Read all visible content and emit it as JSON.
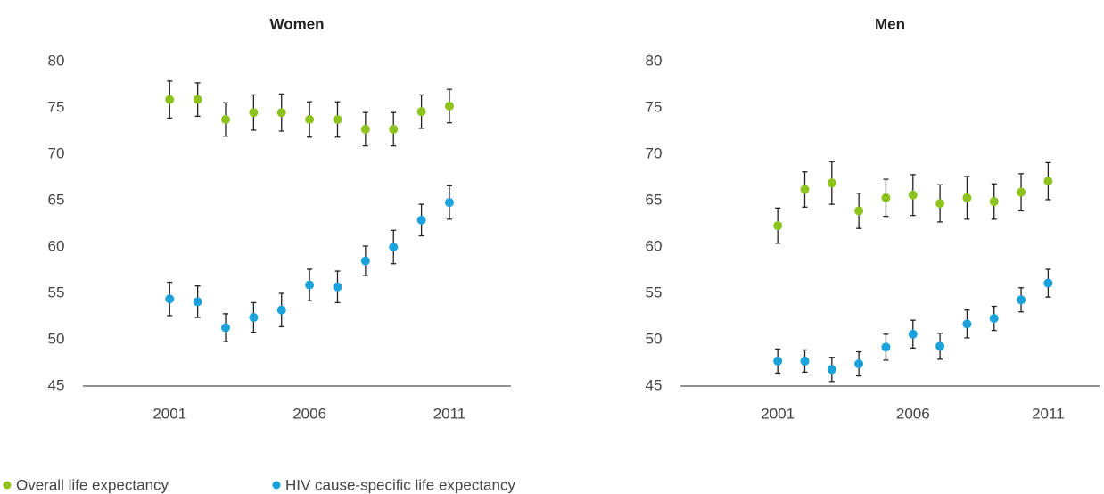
{
  "chart_data": [
    {
      "type": "scatter",
      "title": "Women",
      "x": [
        2001,
        2002,
        2003,
        2004,
        2005,
        2006,
        2007,
        2008,
        2009,
        2010,
        2011
      ],
      "xlim": [
        1997.9,
        2013.2
      ],
      "xticks": [
        2001,
        2006,
        2011
      ],
      "ylim": [
        45,
        80
      ],
      "yticks": [
        45,
        50,
        55,
        60,
        65,
        70,
        75,
        80
      ],
      "series": [
        {
          "color": "#8dc21f",
          "values": [
            75.9,
            75.9,
            73.75,
            74.5,
            74.5,
            73.75,
            73.75,
            72.7,
            72.7,
            74.6,
            75.2
          ],
          "errors": [
            2.0,
            1.8,
            1.8,
            1.9,
            2.0,
            1.9,
            1.9,
            1.8,
            1.8,
            1.8,
            1.8
          ]
        },
        {
          "color": "#1ba1dc",
          "values": [
            54.4,
            54.1,
            51.3,
            52.4,
            53.2,
            55.9,
            55.7,
            58.5,
            60.0,
            62.9,
            64.8
          ],
          "errors": [
            1.8,
            1.7,
            1.5,
            1.6,
            1.8,
            1.7,
            1.7,
            1.6,
            1.8,
            1.7,
            1.8
          ]
        }
      ]
    },
    {
      "type": "scatter",
      "title": "Men",
      "x": [
        2001,
        2002,
        2003,
        2004,
        2005,
        2006,
        2007,
        2008,
        2009,
        2010,
        2011
      ],
      "xlim": [
        1997.4,
        2012.9
      ],
      "xticks": [
        2001,
        2006,
        2011
      ],
      "ylim": [
        45,
        80
      ],
      "yticks": [
        45,
        50,
        55,
        60,
        65,
        70,
        75,
        80
      ],
      "series": [
        {
          "color": "#8dc21f",
          "values": [
            62.3,
            66.2,
            66.9,
            63.9,
            65.3,
            65.6,
            64.7,
            65.3,
            64.9,
            65.9,
            67.1
          ],
          "errors": [
            1.9,
            1.9,
            2.3,
            1.9,
            2.0,
            2.2,
            2.0,
            2.3,
            1.9,
            2.0,
            2.0
          ]
        },
        {
          "color": "#1ba1dc",
          "values": [
            47.7,
            47.7,
            46.8,
            47.4,
            49.2,
            50.6,
            49.3,
            51.7,
            52.3,
            54.3,
            56.1
          ],
          "errors": [
            1.3,
            1.2,
            1.3,
            1.3,
            1.4,
            1.5,
            1.4,
            1.5,
            1.3,
            1.3,
            1.5
          ]
        }
      ]
    }
  ],
  "legend": [
    {
      "name": "Overall life expectancy",
      "color": "#8dc21f"
    },
    {
      "name": "HIV cause-specific life expectancy",
      "color": "#1ba1dc"
    }
  ]
}
